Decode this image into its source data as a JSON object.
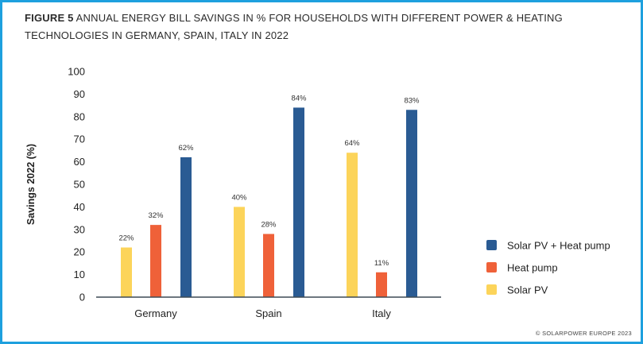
{
  "figure": {
    "label": "FIGURE 5",
    "title": "ANNUAL ENERGY BILL SAVINGS IN % FOR HOUSEHOLDS WITH DIFFERENT POWER & HEATING TECHNOLOGIES IN GERMANY, SPAIN, ITALY IN 2022",
    "copyright": "© SOLARPOWER EUROPE 2023"
  },
  "chart_data": {
    "type": "bar",
    "title": "ANNUAL ENERGY BILL SAVINGS IN % FOR HOUSEHOLDS WITH DIFFERENT POWER & HEATING TECHNOLOGIES IN GERMANY, SPAIN, ITALY IN 2022",
    "xlabel": "",
    "ylabel": "Savings 2022 (%)",
    "ylim": [
      0,
      100
    ],
    "yticks": [
      0,
      10,
      20,
      30,
      40,
      50,
      60,
      70,
      80,
      90,
      100
    ],
    "categories": [
      "Germany",
      "Spain",
      "Italy"
    ],
    "series": [
      {
        "name": "Solar PV",
        "color": "#fcd45a",
        "values": [
          22,
          40,
          64
        ]
      },
      {
        "name": "Heat pump",
        "color": "#ef6139",
        "values": [
          32,
          28,
          11
        ]
      },
      {
        "name": "Solar PV + Heat pump",
        "color": "#2a5b93",
        "values": [
          62,
          84,
          83
        ]
      }
    ],
    "legend_order": [
      "Solar PV + Heat pump",
      "Heat pump",
      "Solar PV"
    ],
    "legend_position": "right",
    "data_label_suffix": "%",
    "grid": false
  }
}
